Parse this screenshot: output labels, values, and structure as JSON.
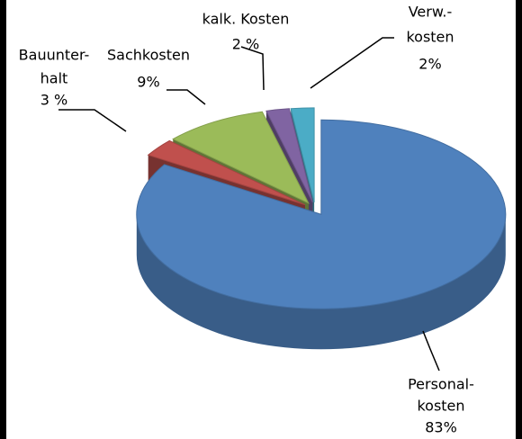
{
  "chart_data": {
    "type": "pie",
    "categories": [
      [
        "Personal-",
        "kosten"
      ],
      [
        "Bauunter-",
        "halt"
      ],
      [
        "Sachkosten"
      ],
      [
        "kalk. Kosten"
      ],
      [
        "Verw.-",
        "kosten"
      ]
    ],
    "values": [
      83,
      3,
      9,
      2,
      2
    ],
    "value_labels": [
      "83%",
      "3 %",
      "9%",
      "2 %",
      "2%"
    ],
    "colors": [
      "#4f81bd",
      "#c0504d",
      "#9bbb59",
      "#8064a2",
      "#4bacc6"
    ]
  }
}
